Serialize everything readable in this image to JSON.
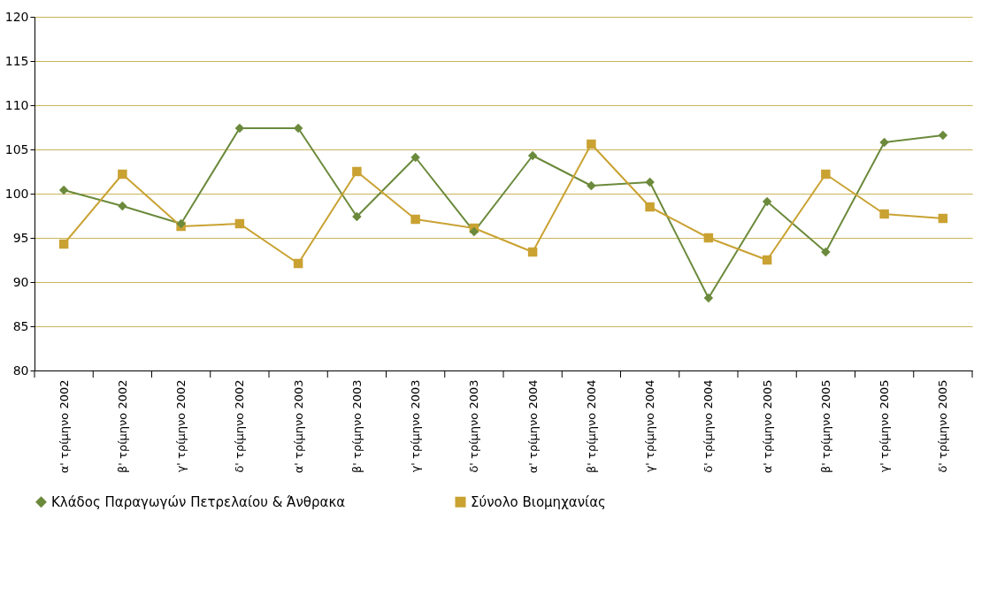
{
  "chart_data": {
    "type": "line",
    "categories": [
      "α' τρίμηνο 2002",
      "β' τρίμηνο 2002",
      "γ' τρίμηνο 2002",
      "δ' τρίμηνο 2002",
      "α' τρίμηνο 2003",
      "β' τρίμηνο 2003",
      "γ' τρίμηνο 2003",
      "δ' τρίμηνο 2003",
      "α' τρίμηνο 2004",
      "β' τρίμηνο 2004",
      "γ' τρίμηνο 2004",
      "δ' τρίμηνο 2004",
      "α' τρίμηνο 2005",
      "β' τρίμηνο 2005",
      "γ' τρίμηνο 2005",
      "δ' τρίμηνο 2005"
    ],
    "series": [
      {
        "name": "Κλάδος Παραγωγών Πετρελαίου & Άνθρακα",
        "color": "#6b8a3c",
        "marker": "diamond",
        "values": [
          100.4,
          98.6,
          96.6,
          107.4,
          107.4,
          97.4,
          104.1,
          95.7,
          104.3,
          100.9,
          101.3,
          88.2,
          99.1,
          93.4,
          105.8,
          106.6
        ]
      },
      {
        "name": "Σύνολο Βιομηχανίας",
        "color": "#c9a232",
        "marker": "square",
        "values": [
          94.3,
          102.2,
          96.3,
          96.6,
          92.1,
          102.5,
          97.1,
          96.1,
          93.4,
          105.6,
          98.5,
          95.0,
          92.5,
          102.2,
          97.7,
          97.2
        ]
      }
    ],
    "ylim": [
      80,
      120
    ],
    "yticks": [
      80,
      85,
      90,
      95,
      100,
      105,
      110,
      115,
      120
    ],
    "grid": "y",
    "legend": "bottom",
    "line_style": "solid"
  }
}
